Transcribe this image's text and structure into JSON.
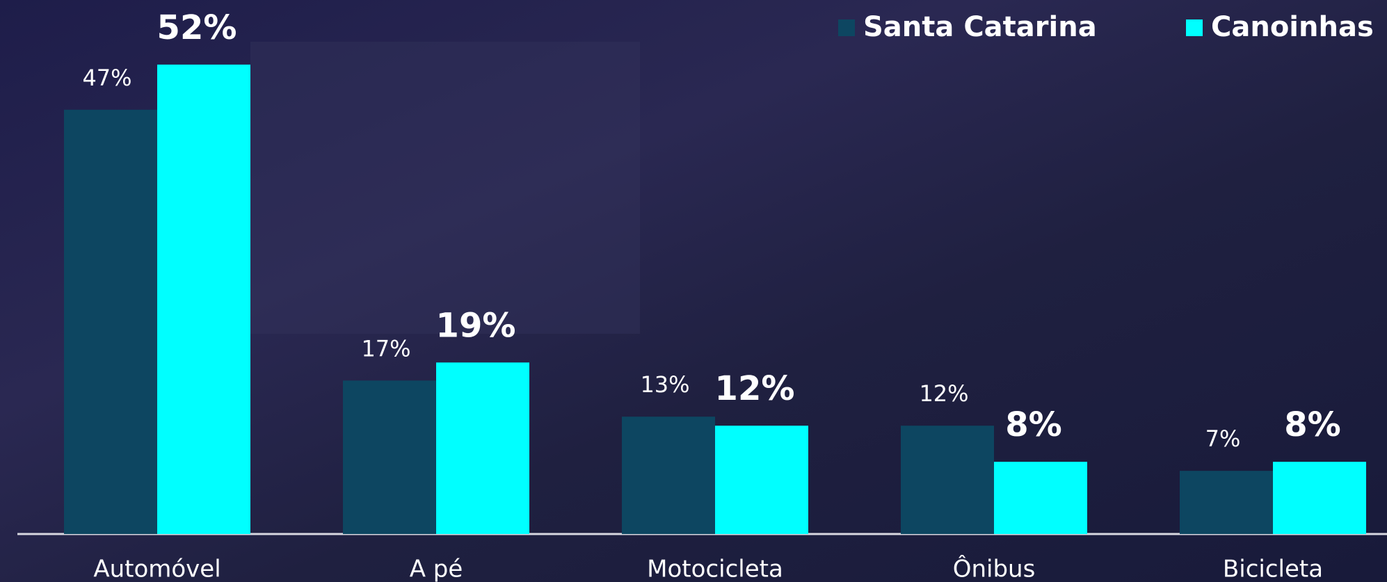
{
  "chart_data": {
    "type": "bar",
    "categories": [
      "Automóvel",
      "A pé",
      "Motocicleta",
      "Ônibus",
      "Bicicleta"
    ],
    "series": [
      {
        "name": "Santa Catarina",
        "color": "#0d4661",
        "values": [
          47,
          17,
          13,
          12,
          7
        ],
        "value_labels": [
          "47%",
          "17%",
          "13%",
          "12%",
          "7%"
        ]
      },
      {
        "name": "Canoinhas",
        "color": "#00ffff",
        "values": [
          52,
          19,
          12,
          8,
          8
        ],
        "value_labels": [
          "52%",
          "19%",
          "12%",
          "8%",
          "8%"
        ]
      }
    ],
    "ylim": [
      0,
      59
    ],
    "legend": "top-right"
  }
}
